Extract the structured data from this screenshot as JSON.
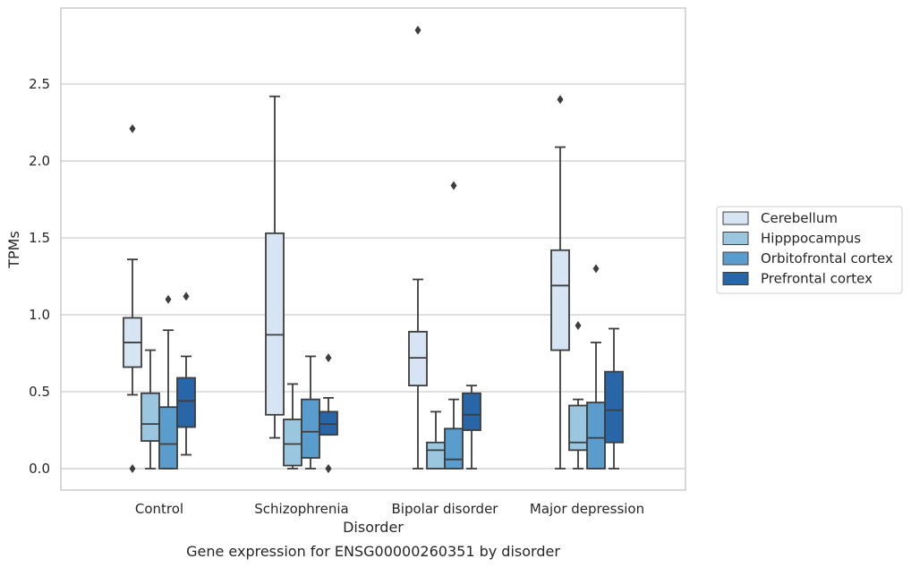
{
  "chart_data": {
    "type": "box",
    "title": "",
    "xlabel": "Disorder",
    "ylabel": "TPMs",
    "caption": "Gene expression for ENSG00000260351 by disorder",
    "categories": [
      "Control",
      "Schizophrenia",
      "Bipolar disorder",
      "Major depression"
    ],
    "ylim": [
      -0.14,
      3.0
    ],
    "yticks": [
      "0.0",
      "0.5",
      "1.0",
      "1.5",
      "2.0",
      "2.5"
    ],
    "grid": "horizontal",
    "legend_position": "right",
    "series": [
      {
        "name": "Cerebellum",
        "color": "#d6e4f3",
        "boxes": [
          {
            "q1": 0.66,
            "median": 0.82,
            "q3": 0.98,
            "whisker_low": 0.48,
            "whisker_high": 1.36,
            "outliers": [
              2.21,
              0.0
            ]
          },
          {
            "q1": 0.35,
            "median": 0.87,
            "q3": 1.53,
            "whisker_low": 0.2,
            "whisker_high": 2.42,
            "outliers": []
          },
          {
            "q1": 0.54,
            "median": 0.72,
            "q3": 0.89,
            "whisker_low": 0.0,
            "whisker_high": 1.23,
            "outliers": [
              2.85
            ]
          },
          {
            "q1": 0.77,
            "median": 1.19,
            "q3": 1.42,
            "whisker_low": 0.0,
            "whisker_high": 2.09,
            "outliers": [
              2.4
            ]
          }
        ]
      },
      {
        "name": "Hipppocampus",
        "color": "#9ac6e0",
        "boxes": [
          {
            "q1": 0.18,
            "median": 0.29,
            "q3": 0.49,
            "whisker_low": 0.0,
            "whisker_high": 0.77,
            "outliers": []
          },
          {
            "q1": 0.02,
            "median": 0.16,
            "q3": 0.32,
            "whisker_low": 0.0,
            "whisker_high": 0.55,
            "outliers": []
          },
          {
            "q1": 0.0,
            "median": 0.12,
            "q3": 0.17,
            "whisker_low": 0.0,
            "whisker_high": 0.37,
            "outliers": []
          },
          {
            "q1": 0.12,
            "median": 0.17,
            "q3": 0.41,
            "whisker_low": 0.0,
            "whisker_high": 0.45,
            "outliers": [
              0.93
            ]
          }
        ]
      },
      {
        "name": "Orbitofrontal cortex",
        "color": "#5a9ccb",
        "boxes": [
          {
            "q1": 0.0,
            "median": 0.16,
            "q3": 0.4,
            "whisker_low": 0.0,
            "whisker_high": 0.9,
            "outliers": [
              1.1
            ]
          },
          {
            "q1": 0.07,
            "median": 0.24,
            "q3": 0.45,
            "whisker_low": 0.0,
            "whisker_high": 0.73,
            "outliers": []
          },
          {
            "q1": 0.0,
            "median": 0.06,
            "q3": 0.26,
            "whisker_low": 0.0,
            "whisker_high": 0.45,
            "outliers": [
              1.84
            ]
          },
          {
            "q1": 0.0,
            "median": 0.2,
            "q3": 0.43,
            "whisker_low": 0.0,
            "whisker_high": 0.82,
            "outliers": [
              1.3
            ]
          }
        ]
      },
      {
        "name": "Prefrontal cortex",
        "color": "#2866a8",
        "boxes": [
          {
            "q1": 0.27,
            "median": 0.44,
            "q3": 0.59,
            "whisker_low": 0.09,
            "whisker_high": 0.73,
            "outliers": [
              1.12
            ]
          },
          {
            "q1": 0.22,
            "median": 0.29,
            "q3": 0.37,
            "whisker_low": 0.22,
            "whisker_high": 0.46,
            "outliers": [
              0.72,
              0.0,
              0.0
            ]
          },
          {
            "q1": 0.25,
            "median": 0.35,
            "q3": 0.49,
            "whisker_low": 0.0,
            "whisker_high": 0.54,
            "outliers": []
          },
          {
            "q1": 0.17,
            "median": 0.38,
            "q3": 0.63,
            "whisker_low": 0.0,
            "whisker_high": 0.91,
            "outliers": []
          }
        ]
      }
    ]
  }
}
